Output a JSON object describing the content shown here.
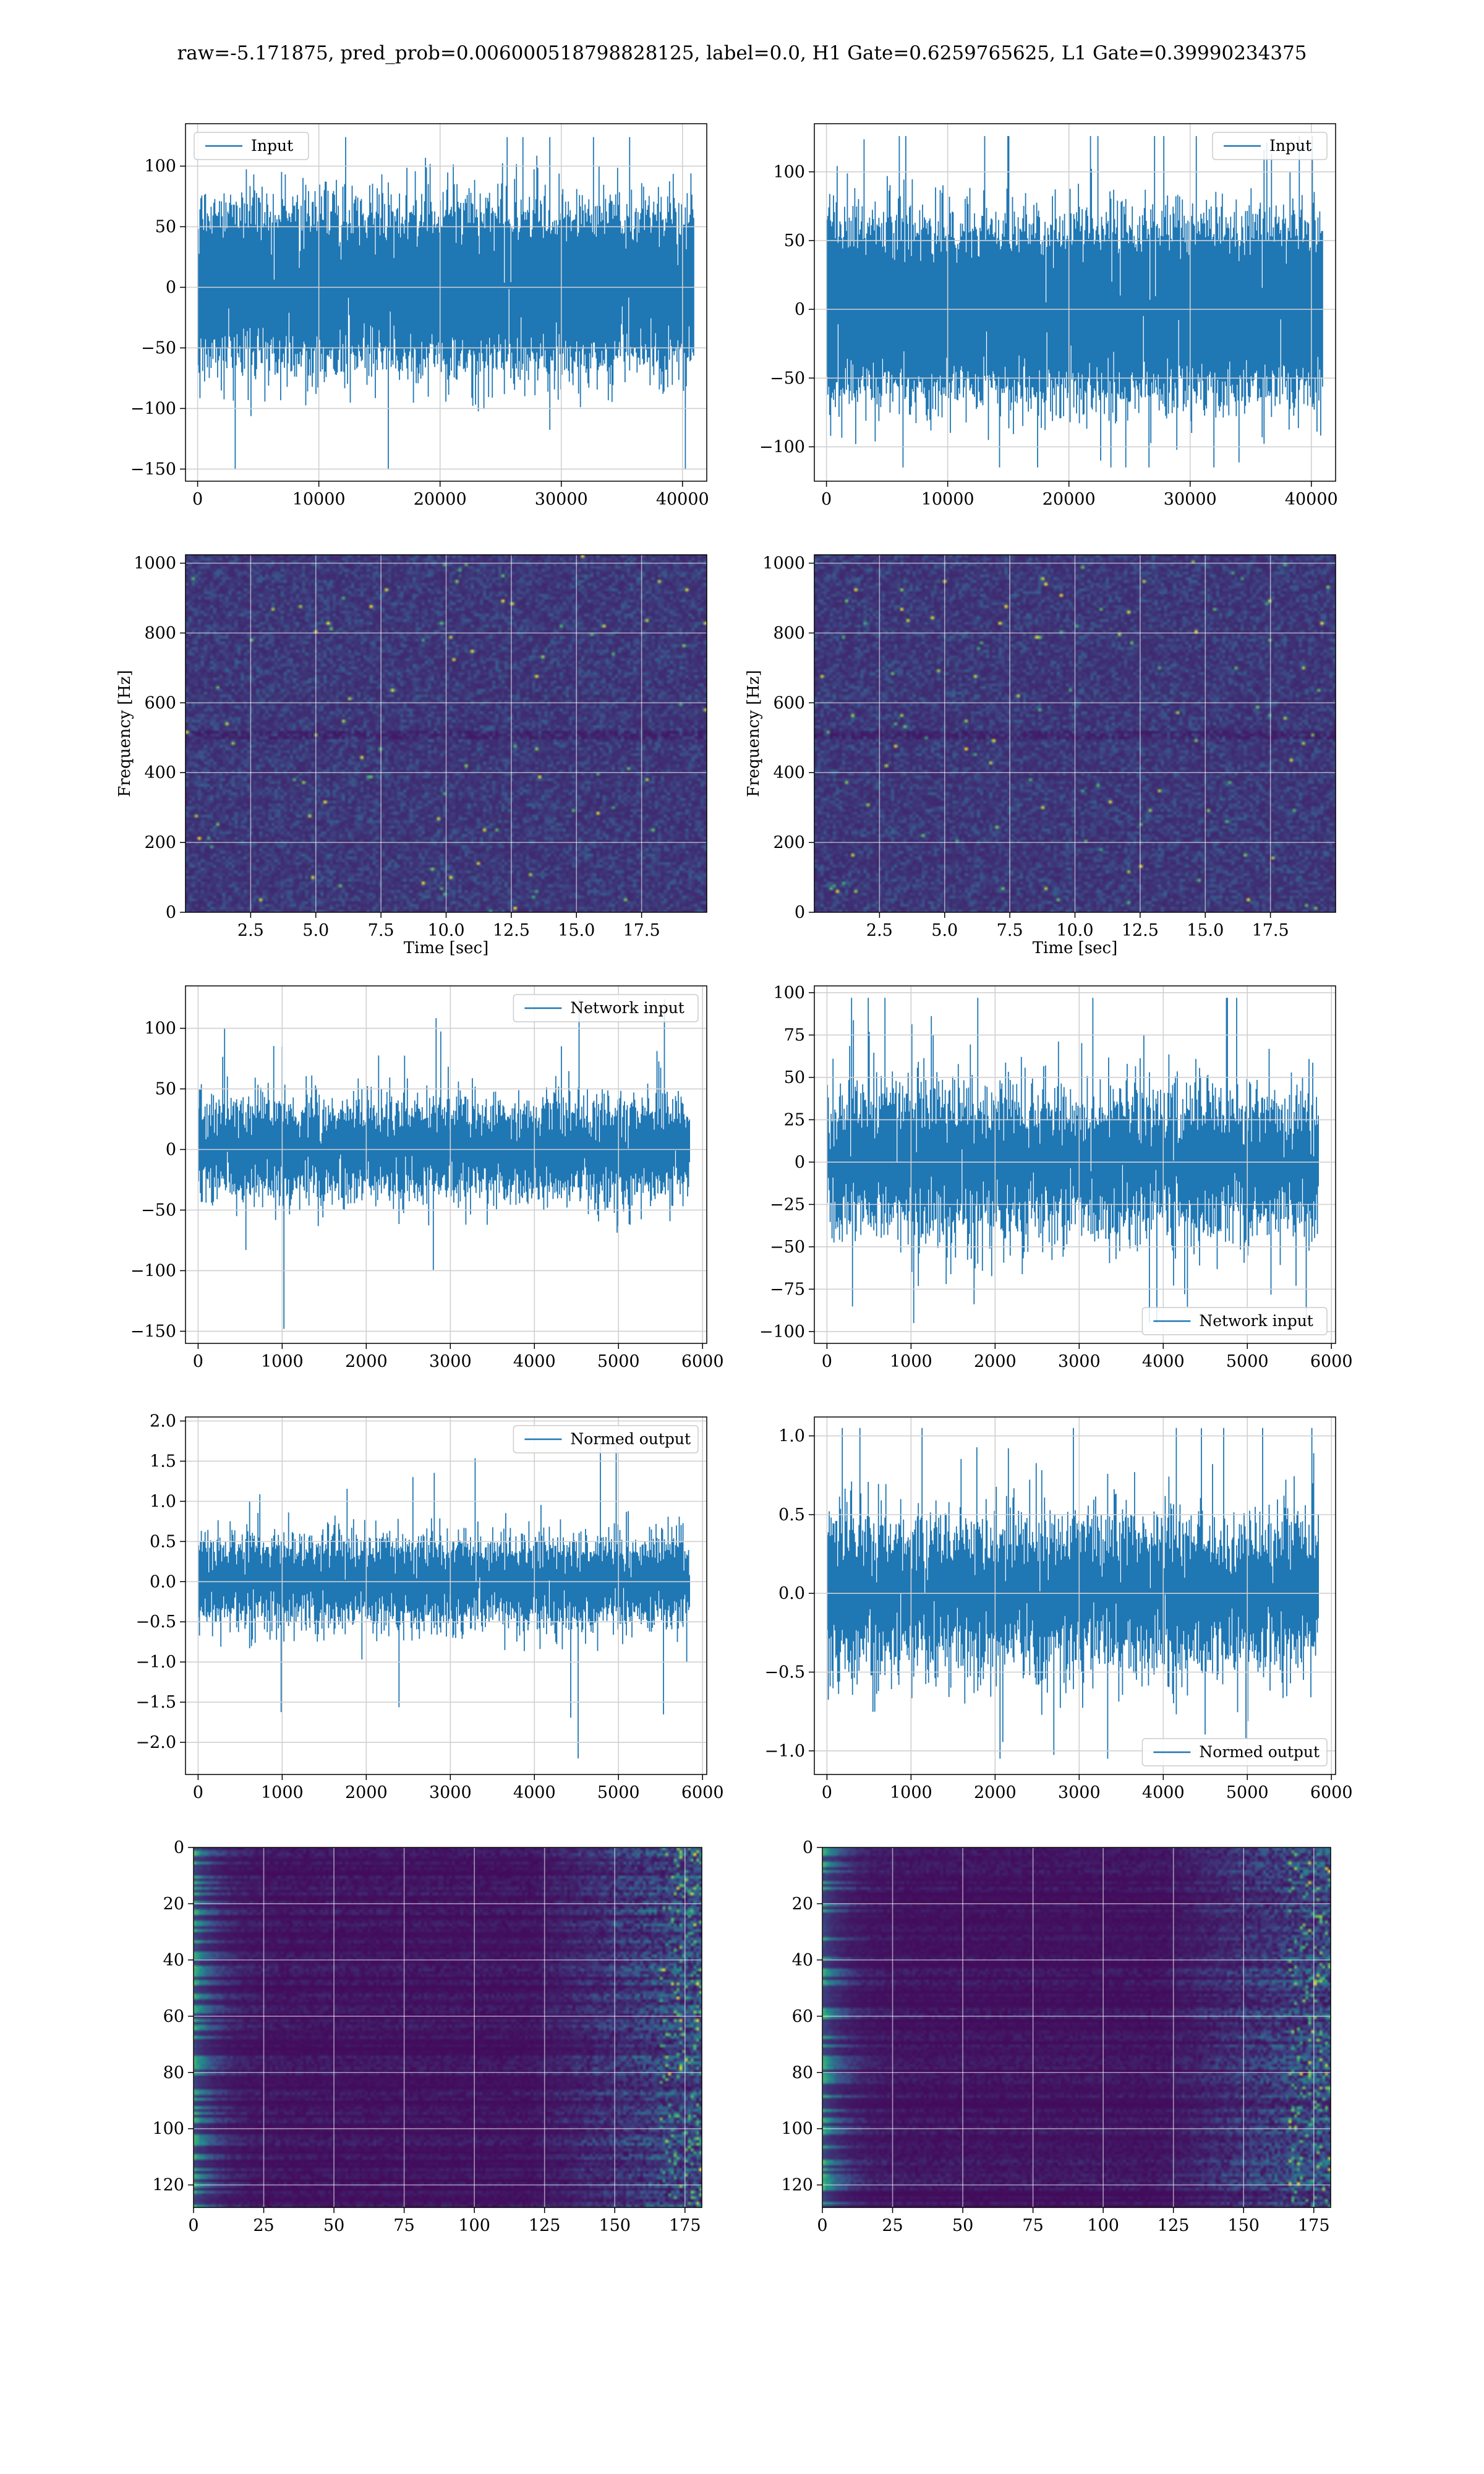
{
  "figure_title": "raw=-5.171875, pred_prob=0.006000518798828125, label=0.0, H1 Gate=0.6259765625, L1 Gate=0.39990234375",
  "colors": {
    "line": "#1f77b4",
    "grid": "#d0d0d0",
    "heatmap_low": "#440154",
    "heatmap_high": "#fde725"
  },
  "chart_data": [
    {
      "id": "h1-input",
      "type": "line",
      "legend": "Input",
      "legend_loc": "upper left",
      "xlim": [
        -1000,
        42000
      ],
      "ylim": [
        -160,
        135
      ],
      "xticks": [
        0,
        10000,
        20000,
        30000,
        40000
      ],
      "xtick_labels": [
        "0",
        "10000",
        "20000",
        "30000",
        "40000"
      ],
      "yticks": [
        100,
        50,
        0,
        -50,
        -100,
        -150
      ],
      "ytick_labels": [
        "100",
        "50",
        "0",
        "−50",
        "−100",
        "−150"
      ],
      "xlabel": "",
      "ylabel": "",
      "series": {
        "n_points": 40960,
        "x_range": [
          0,
          40960
        ],
        "band": [
          -65,
          65
        ],
        "max": 124,
        "min": -150
      }
    },
    {
      "id": "l1-input",
      "type": "line",
      "legend": "Input",
      "legend_loc": "upper right",
      "xlim": [
        -1000,
        42000
      ],
      "ylim": [
        -125,
        135
      ],
      "xticks": [
        0,
        10000,
        20000,
        30000,
        40000
      ],
      "xtick_labels": [
        "0",
        "10000",
        "20000",
        "30000",
        "40000"
      ],
      "yticks": [
        100,
        50,
        0,
        -50,
        -100
      ],
      "ytick_labels": [
        "100",
        "50",
        "0",
        "−50",
        "−100"
      ],
      "xlabel": "",
      "ylabel": "",
      "series": {
        "n_points": 40960,
        "x_range": [
          0,
          40960
        ],
        "band": [
          -65,
          65
        ],
        "max": 126,
        "min": -115
      }
    },
    {
      "id": "h1-spectrogram",
      "type": "heatmap",
      "xlim": [
        0,
        20
      ],
      "ylim": [
        0,
        1024
      ],
      "xticks": [
        2.5,
        5,
        7.5,
        10,
        12.5,
        15,
        17.5
      ],
      "xtick_labels": [
        "2.5",
        "5.0",
        "7.5",
        "10.0",
        "12.5",
        "15.0",
        "17.5"
      ],
      "yticks": [
        0,
        200,
        400,
        600,
        800,
        1000
      ],
      "ytick_labels": [
        "0",
        "200",
        "400",
        "600",
        "800",
        "1000"
      ],
      "xlabel": "Time [sec]",
      "ylabel": "Frequency [Hz]"
    },
    {
      "id": "l1-spectrogram",
      "type": "heatmap",
      "xlim": [
        0,
        20
      ],
      "ylim": [
        0,
        1024
      ],
      "xticks": [
        2.5,
        5,
        7.5,
        10,
        12.5,
        15,
        17.5
      ],
      "xtick_labels": [
        "2.5",
        "5.0",
        "7.5",
        "10.0",
        "12.5",
        "15.0",
        "17.5"
      ],
      "yticks": [
        0,
        200,
        400,
        600,
        800,
        1000
      ],
      "ytick_labels": [
        "0",
        "200",
        "400",
        "600",
        "800",
        "1000"
      ],
      "xlabel": "Time [sec]",
      "ylabel": "Frequency [Hz]"
    },
    {
      "id": "h1-network-input",
      "type": "line",
      "legend": "Network input",
      "legend_loc": "upper right",
      "xlim": [
        -150,
        6050
      ],
      "ylim": [
        -160,
        135
      ],
      "xticks": [
        0,
        1000,
        2000,
        3000,
        4000,
        5000,
        6000
      ],
      "xtick_labels": [
        "0",
        "1000",
        "2000",
        "3000",
        "4000",
        "5000",
        "6000"
      ],
      "yticks": [
        100,
        50,
        0,
        -50,
        -100,
        -150
      ],
      "ytick_labels": [
        "100",
        "50",
        "0",
        "−50",
        "−100",
        "−150"
      ],
      "xlabel": "",
      "ylabel": "",
      "series": {
        "n_points": 5850,
        "x_range": [
          0,
          5850
        ],
        "band": [
          -45,
          45
        ],
        "max": 124,
        "min": -148
      }
    },
    {
      "id": "l1-network-input",
      "type": "line",
      "legend": "Network input",
      "legend_loc": "lower right",
      "xlim": [
        -150,
        6050
      ],
      "ylim": [
        -107,
        104
      ],
      "xticks": [
        0,
        1000,
        2000,
        3000,
        4000,
        5000,
        6000
      ],
      "xtick_labels": [
        "0",
        "1000",
        "2000",
        "3000",
        "4000",
        "5000",
        "6000"
      ],
      "yticks": [
        100,
        75,
        50,
        25,
        0,
        -25,
        -50,
        -75,
        -100
      ],
      "ytick_labels": [
        "100",
        "75",
        "50",
        "25",
        "0",
        "−25",
        "−50",
        "−75",
        "−100"
      ],
      "xlabel": "",
      "ylabel": "",
      "series": {
        "n_points": 5850,
        "x_range": [
          0,
          5850
        ],
        "band": [
          -48,
          48
        ],
        "max": 97,
        "min": -95
      }
    },
    {
      "id": "h1-normed-output",
      "type": "line",
      "legend": "Normed output",
      "legend_loc": "upper right",
      "xlim": [
        -150,
        6050
      ],
      "ylim": [
        -2.4,
        2.05
      ],
      "xticks": [
        0,
        1000,
        2000,
        3000,
        4000,
        5000,
        6000
      ],
      "xtick_labels": [
        "0",
        "1000",
        "2000",
        "3000",
        "4000",
        "5000",
        "6000"
      ],
      "yticks": [
        2.0,
        1.5,
        1.0,
        0.5,
        0.0,
        -0.5,
        -1.0,
        -1.5,
        -2.0
      ],
      "ytick_labels": [
        "2.0",
        "1.5",
        "1.0",
        "0.5",
        "0.0",
        "−0.5",
        "−1.0",
        "−1.5",
        "−2.0"
      ],
      "xlabel": "",
      "ylabel": "",
      "series": {
        "n_points": 5850,
        "x_range": [
          0,
          5850
        ],
        "band": [
          -0.62,
          0.62
        ],
        "max": 1.8,
        "min": -2.2
      }
    },
    {
      "id": "l1-normed-output",
      "type": "line",
      "legend": "Normed output",
      "legend_loc": "lower right",
      "xlim": [
        -150,
        6050
      ],
      "ylim": [
        -1.15,
        1.12
      ],
      "xticks": [
        0,
        1000,
        2000,
        3000,
        4000,
        5000,
        6000
      ],
      "xtick_labels": [
        "0",
        "1000",
        "2000",
        "3000",
        "4000",
        "5000",
        "6000"
      ],
      "yticks": [
        1.0,
        0.5,
        0.0,
        -0.5,
        -1.0
      ],
      "ytick_labels": [
        "1.0",
        "0.5",
        "0.0",
        "−0.5",
        "−1.0"
      ],
      "xlabel": "",
      "ylabel": "",
      "series": {
        "n_points": 5850,
        "x_range": [
          0,
          5850
        ],
        "band": [
          -0.55,
          0.55
        ],
        "max": 1.05,
        "min": -1.05
      }
    },
    {
      "id": "h1-feature-map",
      "type": "heatmap",
      "xlim": [
        0,
        181
      ],
      "ylim": [
        0,
        128
      ],
      "y_inverted": true,
      "xticks": [
        0,
        25,
        50,
        75,
        100,
        125,
        150,
        175
      ],
      "xtick_labels": [
        "0",
        "25",
        "50",
        "75",
        "100",
        "125",
        "150",
        "175"
      ],
      "yticks": [
        0,
        20,
        40,
        60,
        80,
        100,
        120
      ],
      "ytick_labels": [
        "0",
        "20",
        "40",
        "60",
        "80",
        "100",
        "120"
      ],
      "xlabel": "",
      "ylabel": ""
    },
    {
      "id": "l1-feature-map",
      "type": "heatmap",
      "xlim": [
        0,
        181
      ],
      "ylim": [
        0,
        128
      ],
      "y_inverted": true,
      "xticks": [
        0,
        25,
        50,
        75,
        100,
        125,
        150,
        175
      ],
      "xtick_labels": [
        "0",
        "25",
        "50",
        "75",
        "100",
        "125",
        "150",
        "175"
      ],
      "yticks": [
        0,
        20,
        40,
        60,
        80,
        100,
        120
      ],
      "ytick_labels": [
        "0",
        "20",
        "40",
        "60",
        "80",
        "100",
        "120"
      ],
      "xlabel": "",
      "ylabel": ""
    }
  ]
}
